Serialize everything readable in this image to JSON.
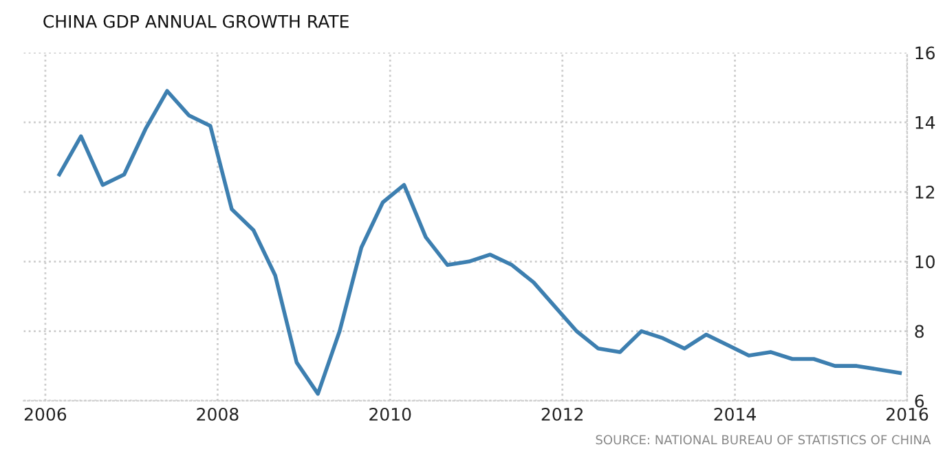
{
  "chart_data": {
    "type": "line",
    "title": "CHINA GDP ANNUAL GROWTH RATE",
    "x": [
      "2006-03",
      "2006-06",
      "2006-09",
      "2006-12",
      "2007-03",
      "2007-06",
      "2007-09",
      "2007-12",
      "2008-03",
      "2008-06",
      "2008-09",
      "2008-12",
      "2009-03",
      "2009-06",
      "2009-09",
      "2009-12",
      "2010-03",
      "2010-06",
      "2010-09",
      "2010-12",
      "2011-03",
      "2011-06",
      "2011-09",
      "2011-12",
      "2012-03",
      "2012-06",
      "2012-09",
      "2012-12",
      "2013-03",
      "2013-06",
      "2013-09",
      "2013-12",
      "2014-03",
      "2014-06",
      "2014-09",
      "2014-12",
      "2015-03",
      "2015-06",
      "2015-09",
      "2015-12"
    ],
    "series": [
      {
        "color": "#3d7fb0",
        "values": [
          12.5,
          13.6,
          12.2,
          12.5,
          13.8,
          14.9,
          14.2,
          13.9,
          11.5,
          10.9,
          9.6,
          7.1,
          6.2,
          8.0,
          10.4,
          11.7,
          12.2,
          10.7,
          9.9,
          10.0,
          10.2,
          9.9,
          9.4,
          8.7,
          8.0,
          7.5,
          7.4,
          8.0,
          7.8,
          7.5,
          7.9,
          7.6,
          7.3,
          7.4,
          7.2,
          7.2,
          7.0,
          7.0,
          6.9,
          6.8
        ]
      }
    ],
    "xlim": [
      "2005-10-01",
      "2016-01-01"
    ],
    "xticks": [
      {
        "value": "2006-01-01",
        "label": "2006"
      },
      {
        "value": "2008-01-01",
        "label": "2008"
      },
      {
        "value": "2010-01-01",
        "label": "2010"
      },
      {
        "value": "2012-01-01",
        "label": "2012"
      },
      {
        "value": "2014-01-01",
        "label": "2014"
      },
      {
        "value": "2016-01-01",
        "label": "2016"
      }
    ],
    "ylim": [
      6,
      16
    ],
    "yticks": [
      6,
      8,
      10,
      12,
      14,
      16
    ],
    "grid": true,
    "line_style": "solid",
    "marker": "none",
    "annotations": [
      "SOURCE: NATIONAL BUREAU OF STATISTICS OF CHINA"
    ]
  }
}
